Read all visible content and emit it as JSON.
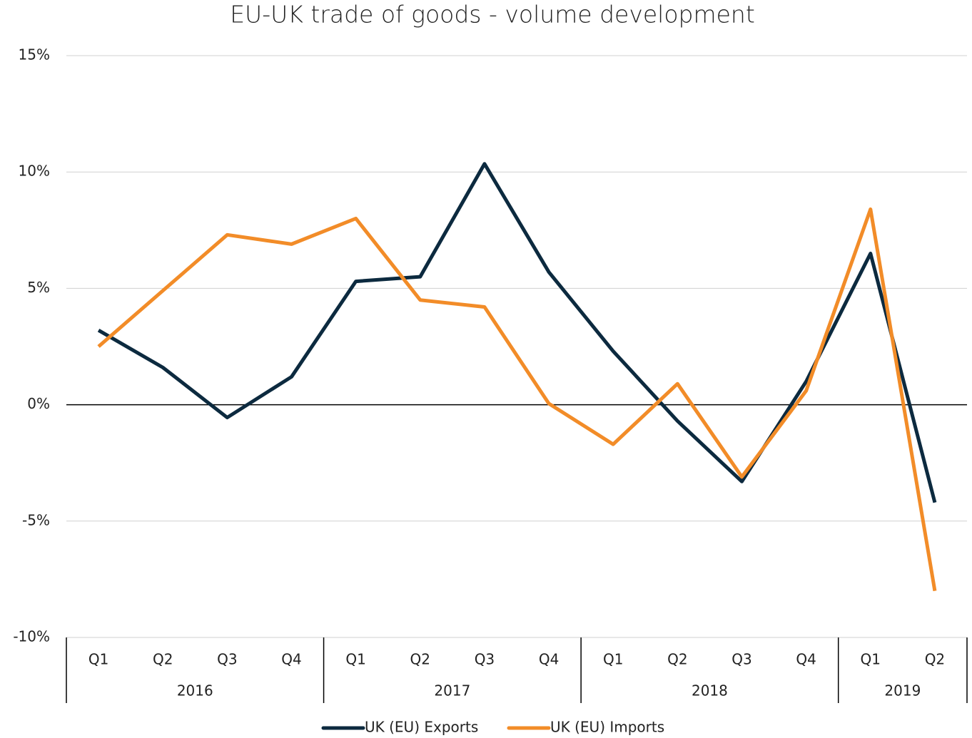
{
  "chart_data": {
    "type": "line",
    "title": "EU-UK trade of goods - volume development",
    "categories": [
      "Q1",
      "Q2",
      "Q3",
      "Q4",
      "Q1",
      "Q2",
      "Q3",
      "Q4",
      "Q1",
      "Q2",
      "Q3",
      "Q4",
      "Q1",
      "Q2"
    ],
    "category_groups": [
      {
        "label": "2016",
        "span": 4
      },
      {
        "label": "2017",
        "span": 4
      },
      {
        "label": "2018",
        "span": 4
      },
      {
        "label": "2019",
        "span": 2
      }
    ],
    "series": [
      {
        "name": "UK (EU) Exports",
        "color": "#0c2a3f",
        "values": [
          3.2,
          1.6,
          -0.55,
          1.2,
          5.3,
          5.5,
          10.35,
          5.7,
          2.3,
          -0.7,
          -3.3,
          1.0,
          6.5,
          -4.2
        ]
      },
      {
        "name": "UK (EU) Imports",
        "color": "#f28c28",
        "values": [
          2.5,
          4.9,
          7.3,
          6.9,
          8.0,
          4.5,
          4.2,
          0.05,
          -1.7,
          0.9,
          -3.1,
          0.6,
          8.4,
          -8.0
        ]
      }
    ],
    "ylim": [
      -10,
      15
    ],
    "yticks": [
      {
        "value": -10,
        "label": "-10%"
      },
      {
        "value": -5,
        "label": "-5%"
      },
      {
        "value": 0,
        "label": "0%"
      },
      {
        "value": 5,
        "label": "5%"
      },
      {
        "value": 10,
        "label": "10%"
      },
      {
        "value": 15,
        "label": "15%"
      }
    ],
    "grid": true,
    "legend": "bottom"
  }
}
